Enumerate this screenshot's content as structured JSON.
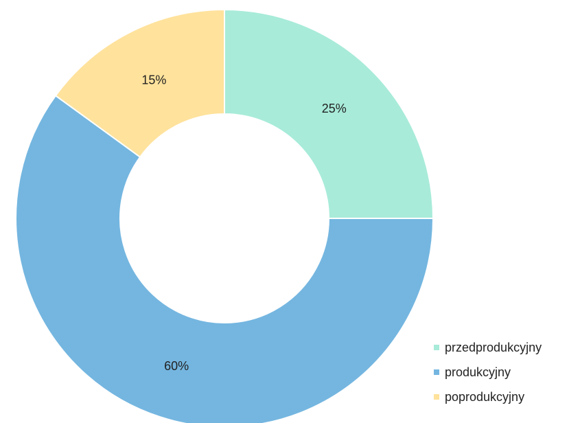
{
  "chart_data": {
    "type": "pie",
    "donut": true,
    "categories": [
      "przedprodukcyjny",
      "produkcyjny",
      "poprodukcyjny"
    ],
    "values": [
      25,
      60,
      15
    ],
    "value_suffix": "%",
    "data_labels": [
      "25%",
      "60%",
      "15%"
    ],
    "colors": [
      "#A8EBD9",
      "#74B6E0",
      "#FFE29C"
    ],
    "legend": {
      "position": "bottom-right"
    },
    "title": ""
  }
}
